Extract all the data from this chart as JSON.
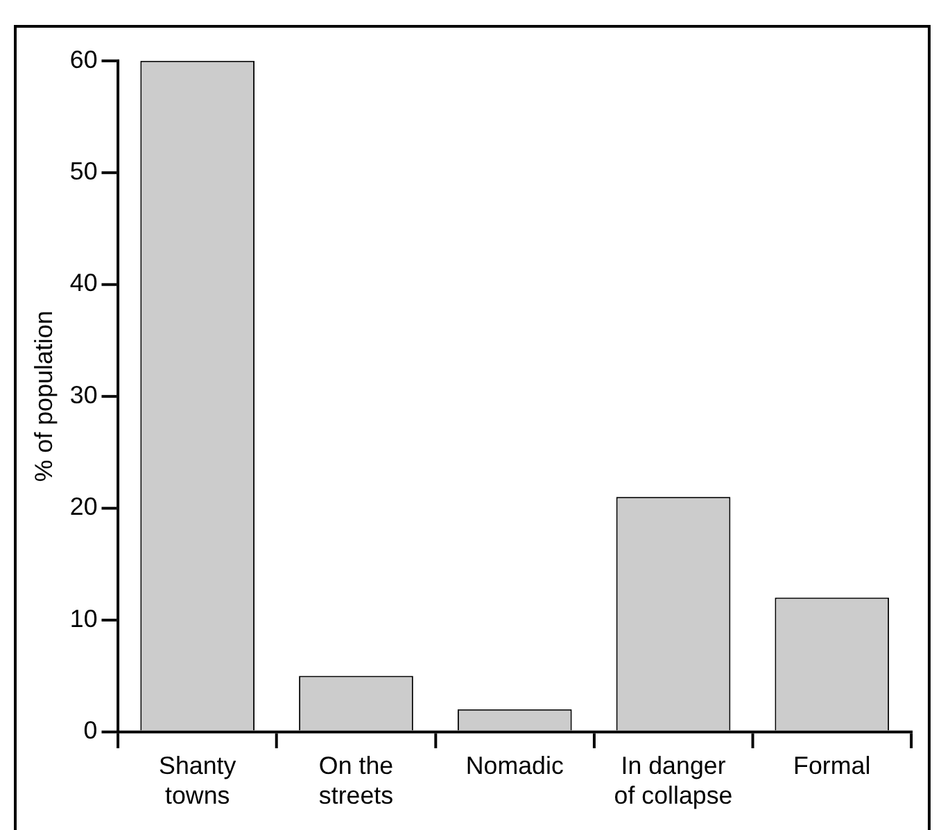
{
  "chart_data": {
    "type": "bar",
    "ylabel": "% of population",
    "categories": [
      "Shanty towns",
      "On the streets",
      "Nomadic",
      "In danger of collapse",
      "Formal"
    ],
    "values": [
      60,
      5,
      2,
      21,
      12
    ],
    "color": "#cccccc",
    "ylim": [
      0,
      60
    ],
    "yticks": [
      0,
      10,
      20,
      30,
      40,
      50,
      60
    ],
    "grid": false,
    "legend": false
  }
}
